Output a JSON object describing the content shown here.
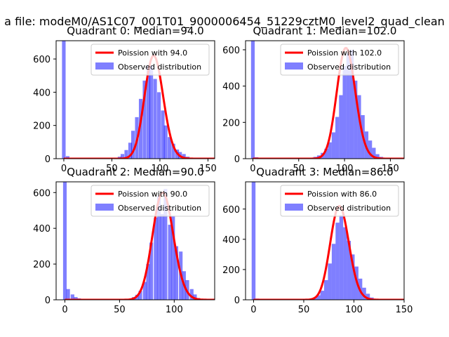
{
  "figure": {
    "suptitle": "a file: modeM0/AS1C07_001T01_9000006454_51229cztM0_level2_quad_clean"
  },
  "chart_data": [
    {
      "type": "bar",
      "title": "Quadrant 0: Median=94.0",
      "xlabel": "",
      "ylabel": "",
      "xlim": [
        -8,
        157
      ],
      "ylim": [
        0,
        710
      ],
      "xticks": [
        0,
        50,
        100,
        150
      ],
      "yticks": [
        0,
        200,
        400,
        600
      ],
      "legend_position": "top-right",
      "line_label": "Poission with 94.0",
      "hist_label": "Observed distribution",
      "poisson_mean": 94.0,
      "poisson_peak": 620,
      "bin_width": 3.76,
      "bin_start": -1.9,
      "bins_x": [
        0,
        4,
        54,
        58,
        61,
        65,
        69,
        72,
        76,
        80,
        84,
        88,
        91,
        95,
        99,
        103,
        106,
        110,
        114,
        118,
        121,
        125,
        129,
        133
      ],
      "bins_y": [
        710,
        15,
        5,
        12,
        28,
        52,
        96,
        168,
        250,
        360,
        470,
        560,
        560,
        480,
        400,
        290,
        200,
        130,
        90,
        55,
        40,
        28,
        12,
        5
      ]
    },
    {
      "type": "bar",
      "title": "Quadrant 1: Median=102.0",
      "xlabel": "",
      "ylabel": "",
      "xlim": [
        -8,
        165
      ],
      "ylim": [
        0,
        650
      ],
      "xticks": [
        0,
        50,
        100,
        150
      ],
      "yticks": [
        0,
        200,
        400,
        600
      ],
      "legend_position": "top-right",
      "line_label": "Poission with 102.0",
      "hist_label": "Observed distribution",
      "poisson_mean": 102.0,
      "poisson_peak": 610,
      "bin_width": 4.0,
      "bin_start": -2.0,
      "bins_x": [
        0,
        4,
        64,
        68,
        72,
        76,
        80,
        84,
        88,
        92,
        96,
        100,
        104,
        108,
        112,
        116,
        120,
        124,
        128,
        132,
        136,
        140
      ],
      "bins_y": [
        650,
        8,
        5,
        10,
        18,
        32,
        55,
        90,
        145,
        230,
        350,
        510,
        580,
        600,
        430,
        350,
        240,
        150,
        100,
        60,
        25,
        10
      ]
    },
    {
      "type": "bar",
      "title": "Quadrant 2: Median=90.0",
      "xlabel": "",
      "ylabel": "",
      "xlim": [
        -8,
        137
      ],
      "ylim": [
        0,
        660
      ],
      "xticks": [
        0,
        50,
        100
      ],
      "yticks": [
        0,
        200,
        400,
        600
      ],
      "legend_position": "top-right",
      "line_label": "Poission with 90.0",
      "hist_label": "Observed distribution",
      "poisson_mean": 90.0,
      "poisson_peak": 600,
      "bin_width": 3.3,
      "bin_start": -1.65,
      "bins_x": [
        0,
        3,
        7,
        10,
        13,
        59,
        63,
        66,
        69,
        73,
        76,
        79,
        83,
        86,
        89,
        92,
        96,
        99,
        102,
        106,
        109,
        112,
        116,
        119,
        122
      ],
      "bins_y": [
        660,
        60,
        30,
        15,
        8,
        6,
        15,
        28,
        50,
        100,
        200,
        320,
        460,
        580,
        480,
        620,
        420,
        470,
        300,
        270,
        160,
        110,
        60,
        30,
        10
      ]
    },
    {
      "type": "bar",
      "title": "Quadrant 3: Median=86.0",
      "xlabel": "",
      "ylabel": "",
      "xlim": [
        -8,
        150
      ],
      "ylim": [
        0,
        780
      ],
      "xticks": [
        0,
        50,
        100,
        150
      ],
      "yticks": [
        0,
        200,
        400,
        600
      ],
      "legend_position": "top-right",
      "line_label": "Poission with 86.0",
      "hist_label": "Observed distribution",
      "poisson_mean": 86.0,
      "poisson_peak": 620,
      "bin_width": 3.8,
      "bin_start": -1.9,
      "bins_x": [
        0,
        3.8,
        57,
        60.8,
        64.6,
        68.4,
        72.2,
        76,
        79.8,
        83.6,
        87.4,
        91.2,
        95,
        98.8,
        102.6,
        106.4,
        110.2,
        114,
        117.8,
        121.6
      ],
      "bins_y": [
        780,
        8,
        6,
        14,
        30,
        60,
        130,
        240,
        370,
        510,
        560,
        480,
        390,
        300,
        220,
        140,
        80,
        40,
        15,
        5
      ]
    }
  ]
}
